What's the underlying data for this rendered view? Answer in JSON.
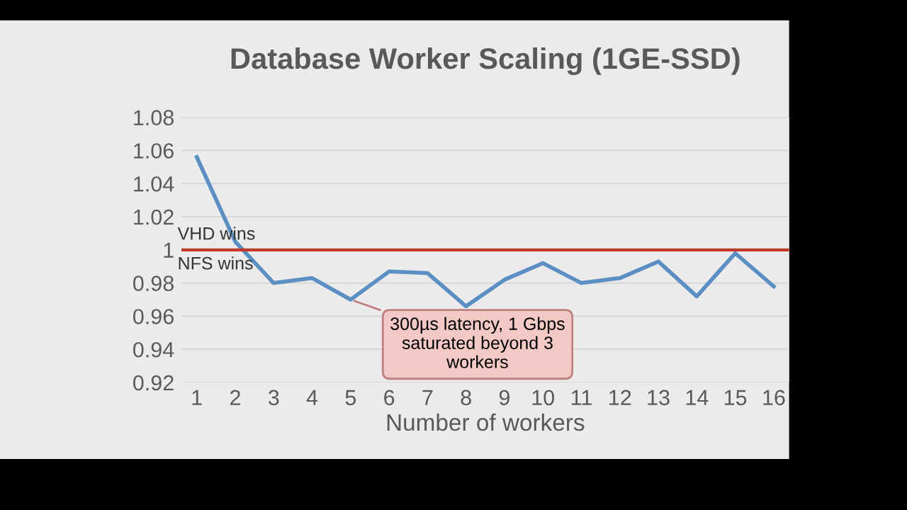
{
  "chart_data": {
    "type": "line",
    "title": "Database Worker Scaling (1GE-SSD)",
    "xlabel": "Number of workers",
    "categories": [
      "1",
      "2",
      "3",
      "4",
      "5",
      "6",
      "7",
      "8",
      "9",
      "10",
      "11",
      "12",
      "13",
      "14",
      "15",
      "16"
    ],
    "series": [
      {
        "color": "#5b8fc4",
        "values": [
          1.056,
          1.005,
          0.98,
          0.983,
          0.97,
          0.987,
          0.986,
          0.966,
          0.982,
          0.992,
          0.98,
          0.983,
          0.993,
          0.972,
          0.998,
          0.978
        ]
      }
    ],
    "ylim": [
      0.92,
      1.08
    ],
    "yticks": [
      0.92,
      0.94,
      0.96,
      0.98,
      1,
      1.02,
      1.04,
      1.06,
      1.08
    ],
    "grid": "y",
    "ref_lines": [
      {
        "axis": "y",
        "value": 1,
        "color": "#c0392b"
      }
    ],
    "annotations": [
      "VHD wins",
      "NFS wins",
      {
        "text": "300µs latency, 1 Gbps\nsaturated beyond 3\nworkers",
        "x": "5",
        "y": 0.97
      }
    ]
  }
}
